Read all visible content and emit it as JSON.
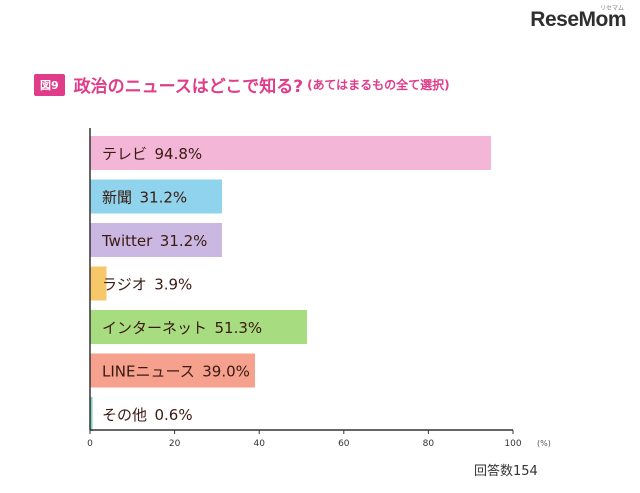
{
  "logo": {
    "text": "ReseMom",
    "sub": "リセマム"
  },
  "figure": {
    "badge": "図9",
    "title": "政治のニュースはどこで知る?",
    "subtitle": "(あてはまるもの全て選択)"
  },
  "respondents": "回答数154",
  "chart_data": {
    "type": "bar",
    "orientation": "horizontal",
    "categories": [
      "テレビ",
      "新聞",
      "Twitter",
      "ラジオ",
      "インターネット",
      "LINEニュース",
      "その他"
    ],
    "values": [
      94.8,
      31.2,
      31.2,
      3.9,
      51.3,
      39.0,
      0.6
    ],
    "value_labels": [
      "94.8%",
      "31.2%",
      "31.2%",
      "3.9%",
      "51.3%",
      "39.0%",
      "0.6%"
    ],
    "colors": [
      "#f3b6d6",
      "#8fd4ec",
      "#cbb8e2",
      "#f6c86a",
      "#a8dc80",
      "#f6a08e",
      "#7fd0c4"
    ],
    "xlim": [
      0,
      100
    ],
    "xticks": [
      0,
      20,
      40,
      60,
      80,
      100
    ],
    "x_unit": "(%)",
    "grid": false
  }
}
